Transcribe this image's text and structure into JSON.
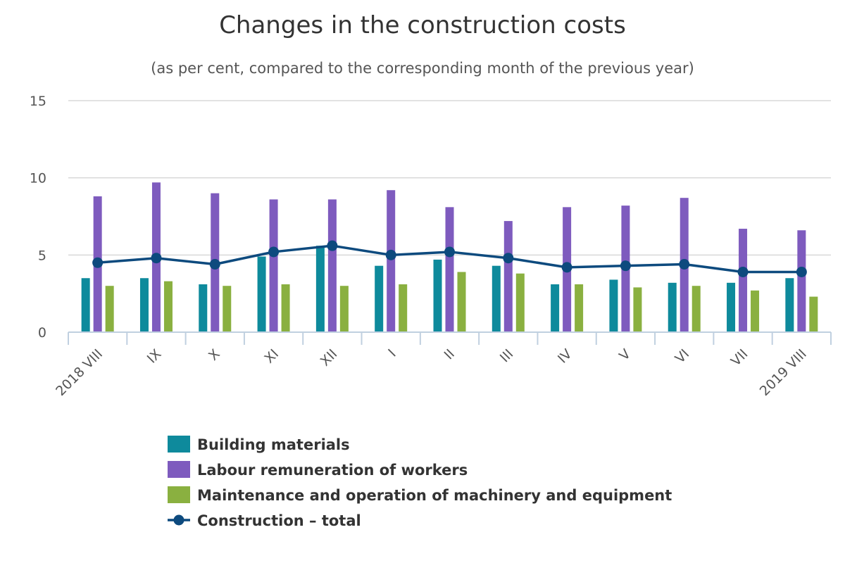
{
  "chart_data": {
    "type": "bar",
    "title": "Changes in the construction costs",
    "subtitle": "(as per cent, compared to the corresponding month of the previous year)",
    "xlabel": "",
    "ylabel": "",
    "categories": [
      "2018 VIII",
      "IX",
      "X",
      "XI",
      "XII",
      "I",
      "II",
      "III",
      "IV",
      "V",
      "VI",
      "VII",
      "2019 VIII"
    ],
    "ylim": [
      0,
      15
    ],
    "yticks": [
      0,
      5,
      10,
      15
    ],
    "grid": true,
    "legend_position": "bottom",
    "series": [
      {
        "name": "Building materials",
        "type": "bar",
        "color": "#0e8a9c",
        "values": [
          3.5,
          3.5,
          3.1,
          4.9,
          5.6,
          4.3,
          4.7,
          4.3,
          3.1,
          3.4,
          3.2,
          3.2,
          3.5
        ]
      },
      {
        "name": "Labour remuneration of workers",
        "type": "bar",
        "color": "#7e5bbe",
        "values": [
          8.8,
          9.7,
          9.0,
          8.6,
          8.6,
          9.2,
          8.1,
          7.2,
          8.1,
          8.2,
          8.7,
          6.7,
          6.6
        ]
      },
      {
        "name": "Maintenance and operation of machinery and equipment",
        "type": "bar",
        "color": "#8ab040",
        "values": [
          3.0,
          3.3,
          3.0,
          3.1,
          3.0,
          3.1,
          3.9,
          3.8,
          3.1,
          2.9,
          3.0,
          2.7,
          2.3
        ]
      },
      {
        "name": "Construction – total",
        "type": "line",
        "color": "#0d4a7e",
        "values": [
          4.5,
          4.8,
          4.4,
          5.2,
          5.6,
          5.0,
          5.2,
          4.8,
          4.2,
          4.3,
          4.4,
          3.9,
          3.9
        ]
      }
    ]
  }
}
